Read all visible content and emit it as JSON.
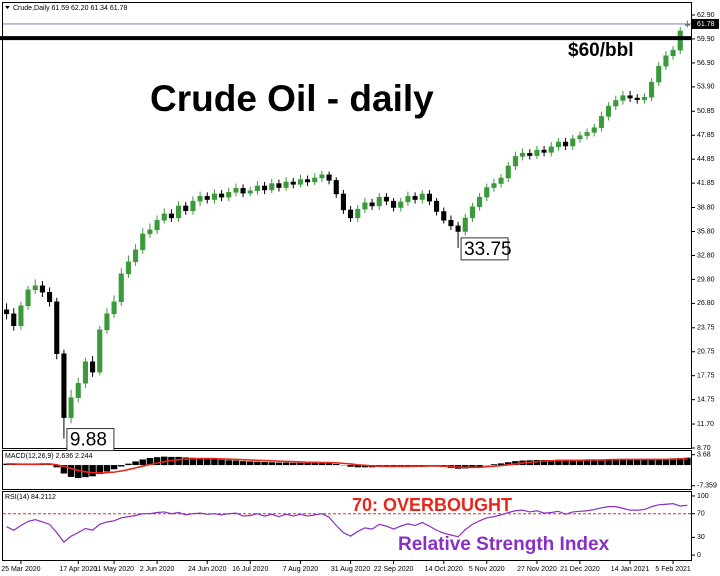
{
  "chart_data": {
    "type": "candlestick",
    "info": "Crude,Daily 61.59 62.20 61.34 61.78",
    "title": "Crude Oil - daily",
    "hline": {
      "value": 60,
      "label": "$60/bbl"
    },
    "up_color": "#3a9a3a",
    "down_color": "#000000",
    "ylim": [
      8.7,
      64.4
    ],
    "yticks": [
      {
        "value": 62.9,
        "label": "62.90"
      },
      {
        "value": 59.9,
        "label": "59.90"
      },
      {
        "value": 56.9,
        "label": "56.90"
      },
      {
        "value": 53.9,
        "label": "53.90"
      },
      50.85,
      47.85,
      44.85,
      41.85,
      {
        "value": 38.8,
        "label": "38.80"
      },
      {
        "value": 35.8,
        "label": "35.80"
      },
      {
        "value": 32.8,
        "label": "32.80"
      },
      {
        "value": 29.8,
        "label": "29.80"
      },
      {
        "value": 26.8,
        "label": "26.80"
      },
      23.75,
      20.75,
      17.75,
      14.75,
      {
        "value": 11.7,
        "label": "11.70"
      },
      {
        "value": 8.7,
        "label": "8.70"
      }
    ],
    "annotations": [
      {
        "index": 8,
        "on": "low"
      },
      {
        "index": 63,
        "on": "low"
      }
    ],
    "categories": [
      null,
      null,
      "25 Mar 2020",
      null,
      null,
      null,
      null,
      null,
      null,
      null,
      "17 Apr 2020",
      null,
      null,
      null,
      null,
      "11 May 2020",
      null,
      null,
      null,
      null,
      null,
      "2 Jun 2020",
      null,
      null,
      null,
      null,
      null,
      null,
      "24 Jun 2020",
      null,
      null,
      null,
      null,
      null,
      "16 Jul 2020",
      null,
      null,
      null,
      null,
      null,
      null,
      "7 Aug 2020",
      null,
      null,
      null,
      null,
      null,
      null,
      "31 Aug 2020",
      null,
      null,
      null,
      null,
      null,
      "22 Sep 2020",
      null,
      null,
      null,
      null,
      null,
      null,
      "14 Oct 2020",
      null,
      null,
      null,
      null,
      null,
      "5 Nov 2020",
      null,
      null,
      null,
      null,
      null,
      null,
      "27 Nov 2020",
      null,
      null,
      null,
      null,
      null,
      "21 Dec 2020",
      null,
      null,
      null,
      null,
      null,
      null,
      "14 Jan 2021",
      null,
      null,
      null,
      null,
      null,
      "5 Feb 2021",
      null,
      null
    ],
    "open": [
      26.0,
      25.5,
      24.0,
      26.5,
      28.5,
      29.0,
      28.2,
      27.0,
      20.5,
      12.5,
      15.0,
      16.8,
      19.5,
      18.2,
      23.5,
      25.5,
      27.0,
      30.5,
      32.0,
      33.5,
      35.5,
      36.0,
      37.2,
      38.0,
      37.5,
      39.0,
      38.4,
      39.6,
      40.2,
      39.8,
      40.5,
      40.1,
      40.7,
      41.2,
      40.6,
      40.9,
      41.5,
      41.0,
      41.8,
      41.3,
      42.0,
      41.7,
      42.3,
      42.0,
      42.5,
      42.9,
      42.2,
      40.5,
      38.5,
      37.5,
      38.6,
      39.4,
      39.0,
      40.1,
      39.6,
      38.8,
      39.5,
      40.2,
      39.8,
      40.5,
      39.6,
      38.3,
      37.2,
      36.5,
      35.8,
      37.5,
      38.9,
      40.1,
      41.3,
      41.8,
      42.5,
      44.0,
      45.2,
      45.6,
      45.3,
      46.0,
      45.7,
      46.4,
      47.0,
      46.5,
      47.4,
      47.8,
      48.2,
      48.8,
      50.2,
      51.5,
      52.2,
      52.8,
      52.5,
      52.3,
      52.6,
      54.5,
      56.5,
      57.8,
      58.5,
      61.59
    ],
    "high": [
      26.8,
      26.2,
      27.0,
      29.0,
      29.8,
      29.6,
      28.8,
      27.5,
      21.0,
      16.0,
      17.5,
      20.0,
      20.2,
      24.0,
      26.2,
      27.8,
      31.2,
      32.8,
      34.2,
      36.2,
      36.8,
      37.8,
      38.7,
      38.6,
      39.6,
      39.5,
      40.2,
      40.8,
      40.7,
      41.1,
      41.0,
      41.3,
      41.8,
      41.7,
      41.4,
      42.1,
      42.0,
      42.4,
      42.3,
      42.6,
      42.5,
      42.9,
      42.8,
      43.1,
      43.4,
      43.3,
      42.6,
      41.0,
      39.0,
      39.1,
      40.0,
      39.9,
      40.6,
      40.6,
      40.0,
      40.0,
      40.8,
      40.7,
      41.0,
      41.0,
      40.0,
      38.8,
      37.8,
      37.0,
      38.0,
      39.4,
      40.6,
      41.8,
      42.4,
      43.0,
      44.5,
      45.8,
      46.2,
      46.1,
      46.5,
      46.5,
      47.0,
      47.5,
      47.5,
      47.9,
      48.3,
      48.7,
      49.3,
      50.8,
      52.0,
      52.8,
      53.4,
      53.4,
      53.0,
      53.1,
      55.0,
      57.0,
      58.4,
      59.0,
      61.4,
      62.2
    ],
    "low": [
      24.8,
      23.4,
      23.5,
      26.0,
      28.0,
      27.6,
      26.4,
      19.8,
      9.88,
      11.8,
      14.4,
      16.2,
      17.6,
      17.8,
      23.0,
      25.0,
      26.5,
      30.0,
      31.5,
      33.0,
      35.0,
      35.5,
      36.8,
      37.0,
      37.0,
      37.9,
      37.9,
      39.0,
      39.3,
      39.3,
      39.6,
      39.6,
      40.2,
      40.1,
      40.2,
      40.4,
      40.5,
      40.6,
      40.8,
      40.9,
      41.2,
      41.3,
      41.5,
      41.6,
      42.0,
      41.7,
      40.0,
      38.0,
      37.0,
      37.0,
      38.1,
      38.5,
      38.5,
      39.1,
      38.3,
      38.3,
      39.0,
      39.3,
      39.3,
      39.1,
      37.8,
      36.8,
      36.0,
      33.75,
      35.3,
      37.0,
      38.4,
      39.6,
      40.8,
      41.3,
      42.0,
      43.5,
      44.7,
      44.8,
      44.9,
      45.2,
      45.2,
      45.9,
      46.0,
      46.0,
      46.9,
      47.3,
      47.7,
      48.3,
      49.7,
      51.0,
      51.7,
      52.0,
      51.8,
      51.8,
      52.1,
      54.0,
      56.0,
      57.3,
      58.0,
      61.34
    ],
    "close": [
      25.5,
      24.0,
      26.5,
      28.5,
      29.0,
      28.2,
      27.0,
      20.5,
      12.5,
      15.0,
      16.8,
      19.5,
      18.2,
      23.5,
      25.5,
      27.0,
      30.5,
      32.0,
      33.5,
      35.5,
      36.0,
      37.2,
      38.0,
      37.5,
      39.0,
      38.4,
      39.6,
      40.2,
      39.8,
      40.5,
      40.1,
      40.7,
      41.2,
      40.6,
      40.9,
      41.5,
      41.0,
      41.8,
      41.3,
      42.0,
      41.7,
      42.3,
      42.0,
      42.5,
      42.9,
      42.2,
      40.5,
      38.5,
      37.5,
      38.6,
      39.4,
      39.0,
      40.1,
      39.6,
      38.8,
      39.5,
      40.2,
      39.8,
      40.5,
      39.6,
      38.3,
      37.2,
      36.5,
      35.8,
      37.5,
      38.9,
      40.1,
      41.3,
      41.8,
      42.5,
      44.0,
      45.2,
      45.6,
      45.3,
      46.0,
      45.7,
      46.4,
      47.0,
      46.5,
      47.4,
      47.8,
      48.2,
      48.8,
      50.2,
      51.5,
      52.2,
      52.8,
      52.5,
      52.3,
      52.6,
      54.5,
      56.5,
      57.8,
      58.5,
      60.9,
      61.78
    ],
    "macd": {
      "label": "MACD(12,26,9) 2.636 2.244",
      "ylim": [
        -8.5,
        5
      ],
      "yticks": [
        3.68,
        -7.359
      ],
      "hist_color": "#000000",
      "signal_color": "#e8261c",
      "values": [
        0.5,
        0.2,
        0.1,
        0.3,
        0.5,
        0.5,
        0.3,
        -0.8,
        -3.0,
        -4.2,
        -4.6,
        -4.3,
        -4.0,
        -3.2,
        -2.3,
        -1.5,
        -0.5,
        0.5,
        1.3,
        2.0,
        2.5,
        2.8,
        3.0,
        2.9,
        2.9,
        2.7,
        2.6,
        2.5,
        2.3,
        2.1,
        1.9,
        1.7,
        1.6,
        1.4,
        1.3,
        1.2,
        1.1,
        1.0,
        0.9,
        0.9,
        0.8,
        0.8,
        0.8,
        0.8,
        0.8,
        0.7,
        0.4,
        -0.1,
        -0.6,
        -0.8,
        -0.8,
        -0.8,
        -0.6,
        -0.5,
        -0.5,
        -0.5,
        -0.4,
        -0.3,
        -0.2,
        -0.2,
        -0.4,
        -0.7,
        -1.0,
        -1.3,
        -1.2,
        -0.9,
        -0.5,
        -0.1,
        0.3,
        0.6,
        1.0,
        1.4,
        1.6,
        1.7,
        1.8,
        1.8,
        1.8,
        1.9,
        1.8,
        1.8,
        1.8,
        1.8,
        1.8,
        1.9,
        2.1,
        2.2,
        2.2,
        2.1,
        2.0,
        1.8,
        1.8,
        2.0,
        2.2,
        2.4,
        2.5,
        2.636
      ],
      "signal": [
        0.4,
        0.4,
        0.3,
        0.3,
        0.3,
        0.4,
        0.4,
        0.1,
        -0.5,
        -1.2,
        -1.9,
        -2.4,
        -2.7,
        -2.8,
        -2.7,
        -2.5,
        -2.1,
        -1.6,
        -1.0,
        -0.4,
        0.2,
        0.7,
        1.2,
        1.6,
        1.9,
        2.1,
        2.2,
        2.3,
        2.3,
        2.3,
        2.2,
        2.1,
        2.0,
        1.9,
        1.8,
        1.7,
        1.6,
        1.5,
        1.4,
        1.3,
        1.2,
        1.1,
        1.0,
        1.0,
        0.9,
        0.9,
        0.8,
        0.6,
        0.4,
        0.1,
        -0.1,
        -0.3,
        -0.4,
        -0.5,
        -0.5,
        -0.5,
        -0.5,
        -0.4,
        -0.4,
        -0.3,
        -0.3,
        -0.4,
        -0.5,
        -0.7,
        -0.8,
        -0.8,
        -0.8,
        -0.6,
        -0.4,
        -0.2,
        0.1,
        0.4,
        0.7,
        1.0,
        1.2,
        1.4,
        1.5,
        1.6,
        1.7,
        1.7,
        1.7,
        1.8,
        1.8,
        1.8,
        1.9,
        1.9,
        2.0,
        2.0,
        2.0,
        2.0,
        2.0,
        2.0,
        2.0,
        2.1,
        2.2,
        2.244
      ]
    },
    "rsi": {
      "label": "RSI(14) 84.2112",
      "ylim": [
        -8.3,
        106.7
      ],
      "yticks": [
        100,
        70,
        30,
        0
      ],
      "level": 70,
      "level_label": "70: OVERBOUGHT",
      "name": "Relative Strength Index",
      "color": "#8a2fc4",
      "level_color": "#e8261c",
      "values": [
        48,
        42,
        50,
        57,
        60,
        56,
        52,
        38,
        22,
        32,
        38,
        45,
        42,
        52,
        56,
        58,
        63,
        65,
        67,
        70,
        70,
        72,
        73,
        70,
        72,
        68,
        70,
        71,
        69,
        70,
        68,
        70,
        71,
        66,
        67,
        70,
        66,
        69,
        65,
        69,
        66,
        69,
        66,
        68,
        70,
        64,
        50,
        38,
        32,
        40,
        46,
        44,
        52,
        49,
        44,
        49,
        53,
        50,
        55,
        49,
        42,
        37,
        34,
        31,
        43,
        52,
        58,
        63,
        65,
        68,
        72,
        75,
        76,
        73,
        75,
        71,
        72,
        74,
        69,
        73,
        74,
        75,
        77,
        80,
        82,
        82,
        79,
        76,
        76,
        77,
        82,
        85,
        86,
        87,
        83,
        84.2112
      ]
    }
  }
}
